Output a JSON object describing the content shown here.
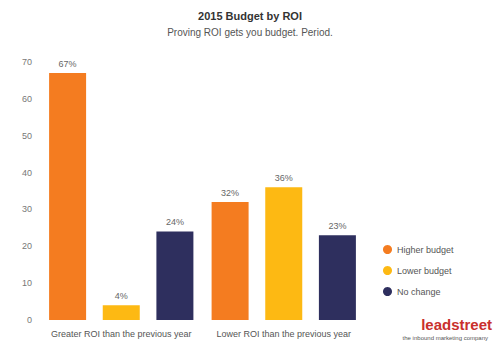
{
  "chart_data": {
    "type": "bar",
    "title": "2015 Budget by ROI",
    "subtitle": "Proving ROI gets you budget. Period.",
    "categories": [
      "Greater ROI than the previous year",
      "Lower ROI than the previous year"
    ],
    "series": [
      {
        "name": "Higher budget",
        "color": "#f47c20",
        "values": [
          67,
          32
        ],
        "value_labels": [
          "67%",
          "32%"
        ]
      },
      {
        "name": "Lower budget",
        "color": "#fdb913",
        "values": [
          4,
          36
        ],
        "value_labels": [
          "4%",
          "36%"
        ]
      },
      {
        "name": "No change",
        "color": "#2e2f5e",
        "values": [
          24,
          23
        ],
        "value_labels": [
          "24%",
          "23%"
        ]
      }
    ],
    "ylim": [
      0,
      70
    ],
    "yticks": [
      0,
      10,
      20,
      30,
      40,
      50,
      60,
      70
    ],
    "grid": false,
    "legend": "right",
    "data_labels": true,
    "annotations": [
      "leadstreet",
      "the inbound marketing company"
    ]
  }
}
